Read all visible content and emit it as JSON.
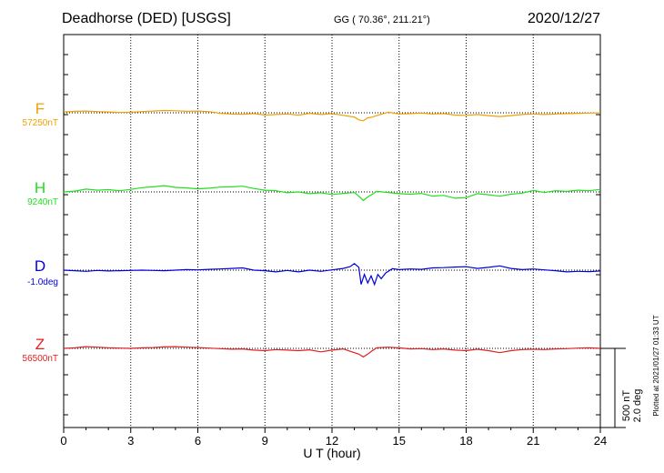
{
  "header": {
    "station": "Deadhorse (DED)  [USGS]",
    "coords": "GG ( 70.36°, 211.21°)",
    "date": "2020/12/27"
  },
  "scale": {
    "nt": "500 nT",
    "deg": "2.0 deg"
  },
  "plotted_note": "Plotted at 2021/01/27 01:33 UT",
  "chart_data": {
    "type": "line",
    "xlabel": "U T (hour)",
    "x_ticks": [
      "0",
      "3",
      "6",
      "9",
      "12",
      "15",
      "18",
      "21",
      "24"
    ],
    "xlim": [
      0,
      24
    ],
    "grid": "dotted vertical every 3 hours, dotted horizontal baselines",
    "series": [
      {
        "name": "F",
        "baseline_label": "57250nT",
        "color": "#f0a000",
        "x": [
          0,
          0.5,
          1,
          1.5,
          2,
          2.5,
          3,
          3.5,
          4,
          4.5,
          5,
          5.5,
          6,
          6.5,
          7,
          7.5,
          8,
          8.5,
          9,
          9.5,
          10,
          10.5,
          11,
          11.5,
          12,
          12.5,
          13,
          13.2,
          13.4,
          13.6,
          13.8,
          14,
          14.5,
          15,
          15.5,
          16,
          16.5,
          17,
          17.5,
          18,
          18.5,
          19,
          19.5,
          20,
          20.5,
          21,
          21.5,
          22,
          22.5,
          23,
          23.5,
          24
        ],
        "values": [
          30,
          50,
          60,
          40,
          30,
          10,
          20,
          40,
          60,
          80,
          70,
          50,
          60,
          40,
          -20,
          -40,
          -50,
          -30,
          -80,
          -60,
          -40,
          -80,
          -20,
          -60,
          -30,
          -90,
          -150,
          -250,
          -280,
          -180,
          -150,
          -100,
          20,
          -40,
          -30,
          -10,
          -40,
          -30,
          -80,
          -90,
          -60,
          -100,
          -130,
          -100,
          -60,
          -40,
          -60,
          -40,
          -30,
          -20,
          -10,
          0
        ]
      },
      {
        "name": "H",
        "baseline_label": "9240nT",
        "color": "#20e020",
        "x": [
          0,
          0.5,
          1,
          1.5,
          2,
          2.5,
          3,
          3.5,
          4,
          4.5,
          5,
          5.5,
          6,
          6.5,
          7,
          7.5,
          8,
          8.5,
          9,
          9.5,
          10,
          10.5,
          11,
          11.5,
          12,
          12.5,
          13,
          13.2,
          13.4,
          13.6,
          13.8,
          14,
          14.5,
          15,
          15.5,
          16,
          16.5,
          17,
          17.5,
          18,
          18.5,
          19,
          19.5,
          20,
          20.5,
          21,
          21.5,
          22,
          22.5,
          23,
          23.5,
          24
        ],
        "values": [
          0,
          30,
          100,
          60,
          80,
          40,
          90,
          150,
          180,
          220,
          160,
          140,
          110,
          130,
          170,
          180,
          200,
          120,
          60,
          40,
          -30,
          0,
          -60,
          -30,
          -90,
          -50,
          -20,
          -150,
          -300,
          -180,
          -80,
          20,
          -20,
          -60,
          -80,
          -50,
          -150,
          -120,
          -220,
          -200,
          -60,
          -100,
          -150,
          -80,
          -40,
          50,
          -20,
          40,
          20,
          60,
          40,
          90
        ]
      },
      {
        "name": "D",
        "baseline_label": "-1.0deg",
        "color": "#0000e0",
        "x": [
          0,
          0.5,
          1,
          1.5,
          2,
          2.5,
          3,
          3.5,
          4,
          4.5,
          5,
          5.5,
          6,
          6.5,
          7,
          7.5,
          8,
          8.5,
          9,
          9.5,
          10,
          10.5,
          11,
          11.5,
          12,
          12.5,
          12.8,
          13,
          13.2,
          13.3,
          13.45,
          13.6,
          13.75,
          13.9,
          14.05,
          14.2,
          14.4,
          14.7,
          15,
          15.5,
          16,
          16.5,
          17,
          17.5,
          18,
          18.5,
          19,
          19.5,
          20,
          20.5,
          21,
          21.5,
          22,
          22.5,
          23,
          23.5,
          24
        ],
        "values": [
          0,
          -20,
          -40,
          -10,
          -30,
          -20,
          -10,
          0,
          -10,
          -20,
          0,
          20,
          10,
          30,
          40,
          60,
          80,
          0,
          -20,
          -60,
          -10,
          -60,
          0,
          -40,
          10,
          60,
          120,
          230,
          100,
          -500,
          -150,
          -450,
          -200,
          -500,
          -150,
          -300,
          -100,
          50,
          20,
          40,
          30,
          80,
          90,
          110,
          120,
          60,
          100,
          150,
          60,
          20,
          40,
          10,
          -20,
          -60,
          -40,
          -50,
          -30
        ]
      },
      {
        "name": "Z",
        "baseline_label": "56500nT",
        "color": "#e02020",
        "x": [
          0,
          0.5,
          1,
          1.5,
          2,
          2.5,
          3,
          3.5,
          4,
          4.5,
          5,
          5.5,
          6,
          6.5,
          7,
          7.5,
          8,
          8.5,
          9,
          9.5,
          10,
          10.5,
          11,
          11.5,
          12,
          12.5,
          13,
          13.2,
          13.4,
          13.6,
          13.8,
          14,
          14.5,
          15,
          15.5,
          16,
          16.5,
          17,
          17.5,
          18,
          18.5,
          19,
          19.5,
          20,
          20.5,
          21,
          21.5,
          22,
          22.5,
          23,
          23.5,
          24
        ],
        "values": [
          0,
          20,
          60,
          40,
          20,
          10,
          0,
          20,
          30,
          50,
          60,
          40,
          30,
          10,
          -10,
          -30,
          -20,
          -60,
          -80,
          -40,
          -60,
          -80,
          -50,
          -120,
          -60,
          -20,
          -150,
          -200,
          -300,
          -200,
          -80,
          20,
          40,
          20,
          -20,
          -10,
          -40,
          -20,
          -60,
          -80,
          -30,
          -80,
          -150,
          -80,
          -40,
          -30,
          -40,
          -20,
          -10,
          10,
          20,
          0
        ]
      }
    ]
  }
}
